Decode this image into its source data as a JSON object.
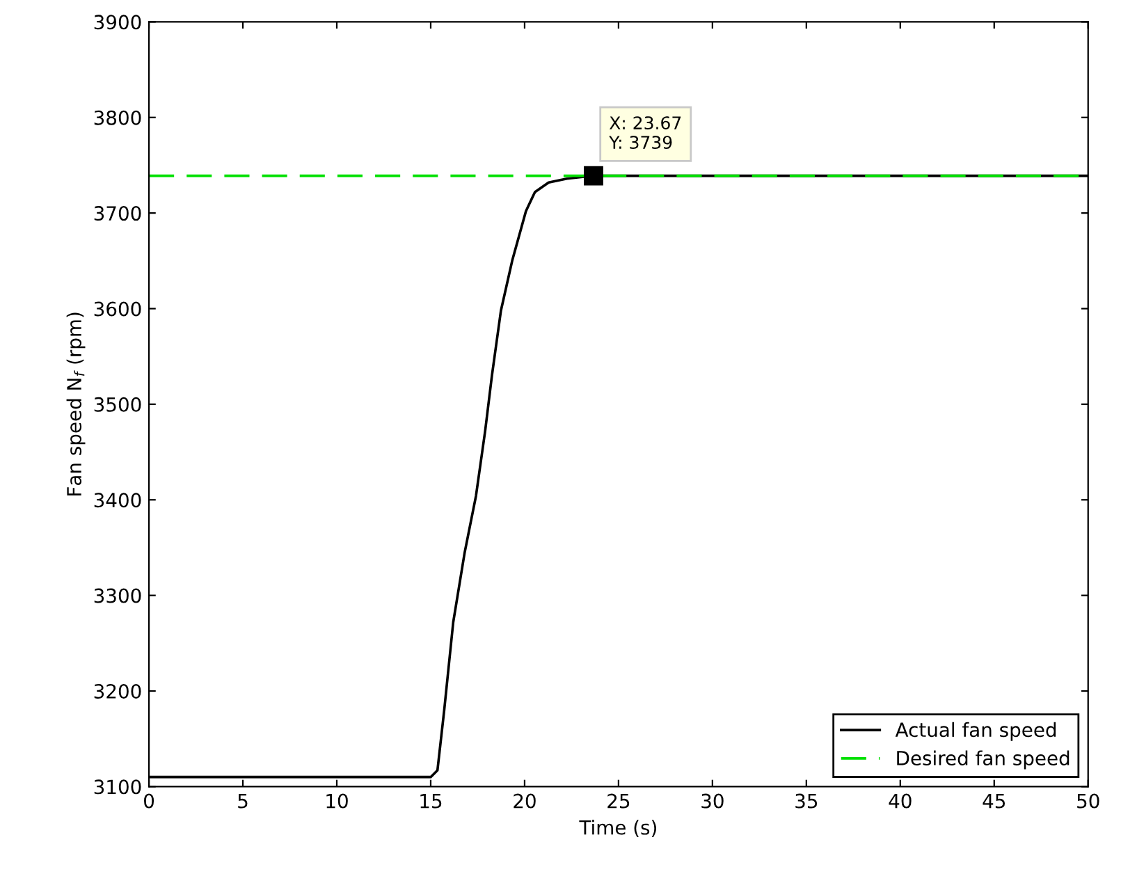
{
  "chart_data": {
    "type": "line",
    "xlabel": "Time (s)",
    "ylabel": "Fan speed N$_{f}$ (rpm)",
    "xlim": [
      0,
      50
    ],
    "xticks": [
      0,
      5,
      10,
      15,
      20,
      25,
      30,
      35,
      40,
      45,
      50
    ],
    "ylim": [
      3100,
      3900
    ],
    "yticks": [
      3100,
      3200,
      3300,
      3400,
      3500,
      3600,
      3700,
      3800,
      3900
    ],
    "grid": false,
    "legend": "bottom right",
    "series": [
      {
        "name": "Actual fan speed",
        "color": "#000000",
        "line_style": "solid",
        "x": [
          0,
          15,
          15.36,
          15.72,
          16.2,
          16.81,
          17.41,
          17.9,
          18.26,
          18.74,
          19.35,
          20.07,
          20.55,
          21.28,
          22.25,
          23.67,
          50
        ],
        "values": [
          3110,
          3110,
          3117,
          3180,
          3272,
          3345,
          3404,
          3472,
          3530,
          3598,
          3651,
          3702,
          3722,
          3732,
          3736,
          3739,
          3739
        ]
      },
      {
        "name": "Desired fan speed",
        "color": "#00e000",
        "line_style": "dashed",
        "x": [
          0,
          50
        ],
        "values": [
          3739,
          3739
        ]
      }
    ],
    "annotations": [
      {
        "text": "X: 23.67\nY: 3739",
        "x": 23.67,
        "y": 3739
      }
    ]
  }
}
